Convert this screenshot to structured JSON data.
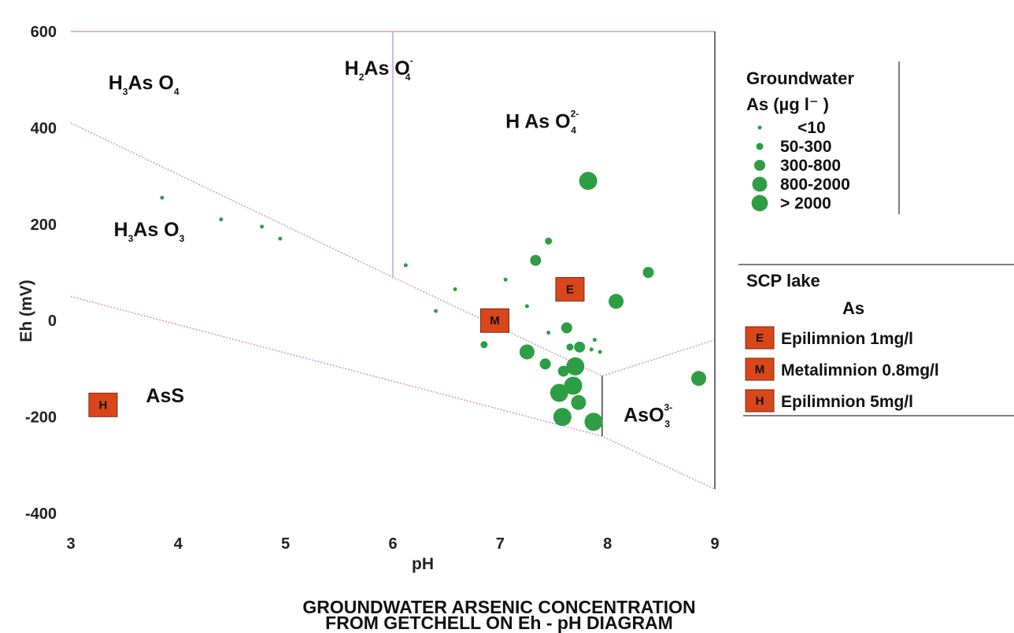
{
  "chart_data": {
    "type": "scatter",
    "title": "GROUNDWATER ARSENIC CONCENTRATION\nFROM GETCHELL ON Eh - pH DIAGRAM",
    "xlabel": "pH",
    "ylabel": "Eh (mV)",
    "xlim": [
      3,
      9
    ],
    "ylim": [
      -400,
      600
    ],
    "x_ticks": [
      "3",
      "4",
      "5",
      "6",
      "7",
      "8",
      "9"
    ],
    "y_ticks": [
      "600",
      "400",
      "200",
      "0",
      "-200",
      "-400"
    ],
    "grid": false,
    "regions": [
      {
        "base": "H",
        "sub1": "3",
        "mid": "As O",
        "sub2": "4",
        "sup": "",
        "x": 3.35,
        "y": 480
      },
      {
        "base": "H",
        "sub1": "2",
        "mid": "As O",
        "sub2": "4",
        "sup": "-",
        "x": 5.55,
        "y": 510
      },
      {
        "base": "H As O",
        "sub1": "",
        "mid": "",
        "sub2": "4",
        "sup": "2-",
        "x": 7.05,
        "y": 400
      },
      {
        "base": "H",
        "sub1": "3",
        "mid": "As O",
        "sub2": "3",
        "sup": "",
        "x": 3.4,
        "y": 175
      },
      {
        "base": "AsS",
        "sub1": "",
        "mid": "",
        "sub2": "",
        "sup": "",
        "x": 3.7,
        "y": -170
      },
      {
        "base": "AsO",
        "sub1": "",
        "mid": "",
        "sub2": "3",
        "sup": "3-",
        "x": 8.15,
        "y": -210
      }
    ],
    "boundaries": [
      [
        [
          3.0,
          410
        ],
        [
          6.0,
          90
        ],
        [
          7.95,
          -115
        ],
        [
          9.0,
          -40
        ]
      ],
      [
        [
          6.0,
          600
        ],
        [
          6.0,
          90
        ]
      ],
      [
        [
          3.0,
          50
        ],
        [
          7.95,
          -240
        ],
        [
          9.0,
          -350
        ]
      ],
      [
        [
          7.95,
          -115
        ],
        [
          7.95,
          -240
        ]
      ],
      [
        [
          9.0,
          600
        ],
        [
          9.0,
          -350
        ]
      ]
    ],
    "legend_groundwater": {
      "title": "Groundwater",
      "unit_label": "As (µg l⁻ )",
      "classes": [
        {
          "label": "<10",
          "size": 1
        },
        {
          "label": "50-300",
          "size": 2
        },
        {
          "label": "300-800",
          "size": 3
        },
        {
          "label": "800-2000",
          "size": 4
        },
        {
          "label": "> 2000",
          "size": 5
        }
      ]
    },
    "legend_scp": {
      "title": "SCP lake",
      "subtitle": "As",
      "items": [
        {
          "marker": "E",
          "label": "Epilimnion 1mg/l"
        },
        {
          "marker": "M",
          "label": "Metalimnion 0.8mg/l"
        },
        {
          "marker": "H",
          "label": "Epilimnion 5mg/l"
        }
      ]
    },
    "series": [
      {
        "points": [
          {
            "pH": 3.85,
            "Eh": 255,
            "size": 1
          },
          {
            "pH": 4.4,
            "Eh": 210,
            "size": 1
          },
          {
            "pH": 4.78,
            "Eh": 195,
            "size": 1
          },
          {
            "pH": 4.95,
            "Eh": 170,
            "size": 1
          },
          {
            "pH": 6.12,
            "Eh": 115,
            "size": 1
          },
          {
            "pH": 6.58,
            "Eh": 65,
            "size": 1
          },
          {
            "pH": 7.05,
            "Eh": 85,
            "size": 1
          },
          {
            "pH": 7.25,
            "Eh": 30,
            "size": 1
          },
          {
            "pH": 6.4,
            "Eh": 20,
            "size": 1
          },
          {
            "pH": 7.45,
            "Eh": -25,
            "size": 1
          },
          {
            "pH": 7.88,
            "Eh": -40,
            "size": 1
          },
          {
            "pH": 7.93,
            "Eh": -65,
            "size": 1
          },
          {
            "pH": 7.85,
            "Eh": -60,
            "size": 1
          },
          {
            "pH": 7.45,
            "Eh": 165,
            "size": 2
          },
          {
            "pH": 6.85,
            "Eh": -50,
            "size": 2
          },
          {
            "pH": 7.65,
            "Eh": -55,
            "size": 2
          },
          {
            "pH": 7.33,
            "Eh": 125,
            "size": 3
          },
          {
            "pH": 7.62,
            "Eh": -15,
            "size": 3
          },
          {
            "pH": 7.59,
            "Eh": -105,
            "size": 3
          },
          {
            "pH": 7.42,
            "Eh": -90,
            "size": 3
          },
          {
            "pH": 7.74,
            "Eh": -55,
            "size": 3
          },
          {
            "pH": 8.38,
            "Eh": 100,
            "size": 3
          },
          {
            "pH": 8.08,
            "Eh": 40,
            "size": 4
          },
          {
            "pH": 7.25,
            "Eh": -65,
            "size": 4
          },
          {
            "pH": 7.73,
            "Eh": -170,
            "size": 4
          },
          {
            "pH": 8.85,
            "Eh": -120,
            "size": 4
          },
          {
            "pH": 7.82,
            "Eh": 290,
            "size": 5
          },
          {
            "pH": 7.7,
            "Eh": -95,
            "size": 5
          },
          {
            "pH": 7.68,
            "Eh": -135,
            "size": 5
          },
          {
            "pH": 7.55,
            "Eh": -150,
            "size": 5
          },
          {
            "pH": 7.58,
            "Eh": -200,
            "size": 5
          },
          {
            "pH": 7.87,
            "Eh": -210,
            "size": 5
          }
        ]
      }
    ],
    "scp_markers": [
      {
        "marker": "E",
        "pH": 7.65,
        "Eh": 65
      },
      {
        "marker": "M",
        "pH": 6.95,
        "Eh": 0
      },
      {
        "marker": "H",
        "pH": 3.3,
        "Eh": -175
      }
    ]
  },
  "colors": {
    "point": "#2e9e44",
    "marker_fill": "#d9461a",
    "boundary_dotted": "#c98bc0",
    "boundary_line": "#c79ad6",
    "axis_line": "#333333"
  }
}
